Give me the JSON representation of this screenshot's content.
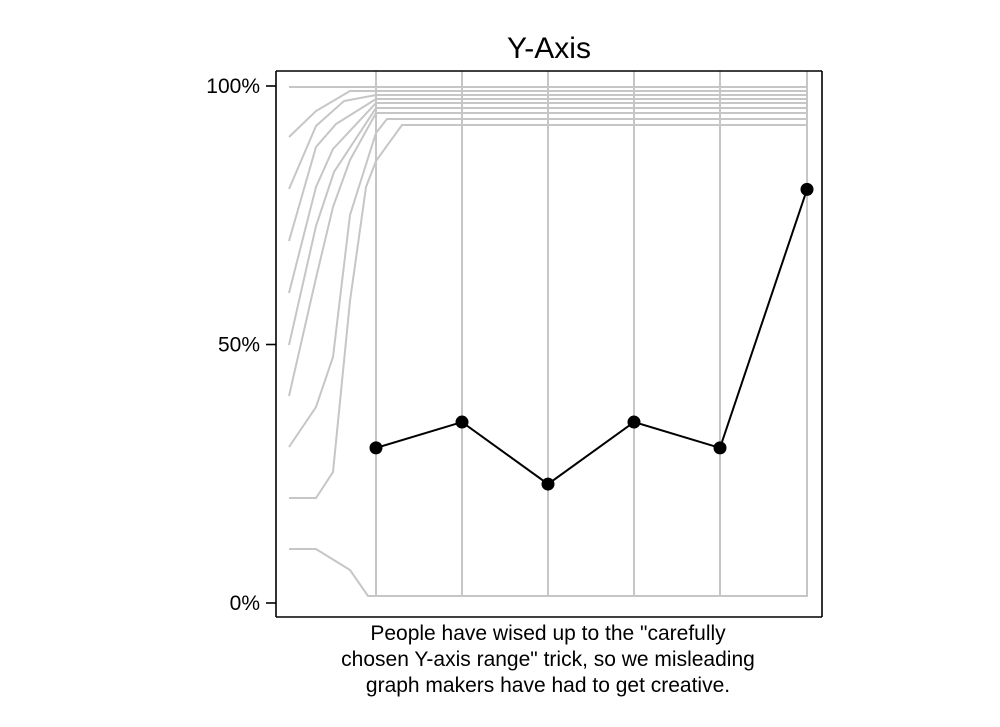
{
  "chart_data": {
    "type": "line",
    "title": "Y-Axis",
    "xlabel": "",
    "ylabel": "",
    "y_ticks": [
      "0%",
      "50%",
      "100%"
    ],
    "ylim": [
      0,
      100
    ],
    "series": [
      {
        "values": [
          30,
          35,
          23,
          35,
          30,
          80
        ]
      }
    ],
    "caption_lines": [
      "People have wised up to the \"carefully",
      "chosen Y-axis range\" trick, so we misleading",
      "graph makers have had to get creative."
    ],
    "grid": false,
    "legend": "none",
    "colors": {
      "series": "#000000",
      "reference_lines": "#c6c6c6",
      "frame": "#000000"
    }
  }
}
